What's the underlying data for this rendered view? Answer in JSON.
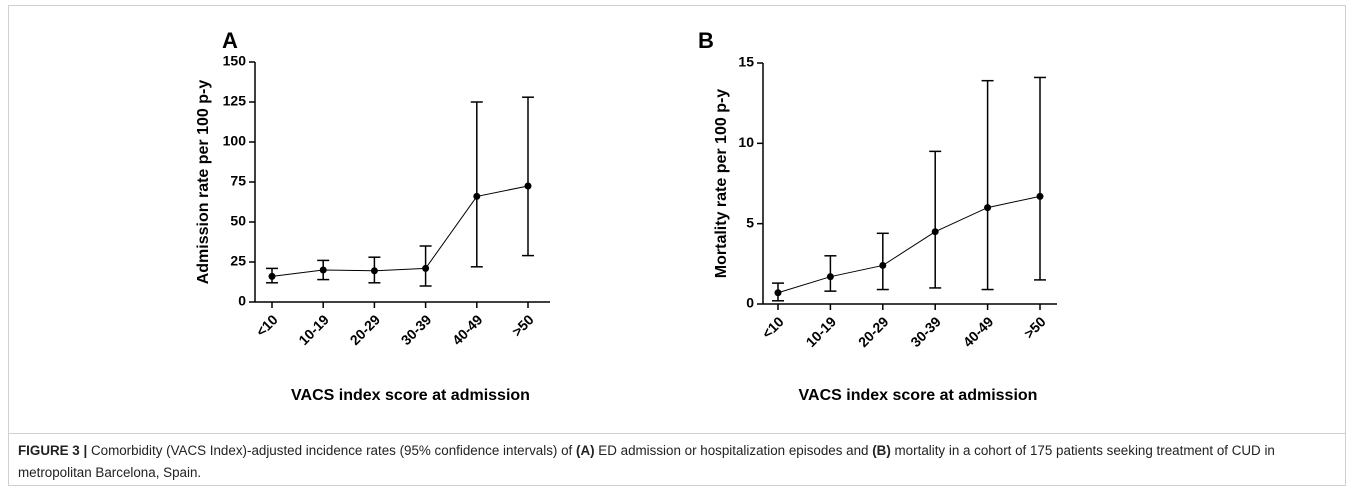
{
  "chart_data": [
    {
      "type": "line",
      "panel": "A",
      "ylabel": "Admission rate per 100 p-y",
      "xlabel": "VACS index score at admission",
      "categories": [
        "<10",
        "10-19",
        "20-29",
        "30-39",
        "40-49",
        ">50"
      ],
      "values": [
        16,
        20,
        19.5,
        21,
        66,
        72.5
      ],
      "error_low": [
        12,
        14,
        12,
        10,
        22,
        29
      ],
      "error_high": [
        21,
        26,
        28,
        35,
        125,
        128
      ],
      "color": "#000000",
      "ylim": [
        0,
        150
      ],
      "yticks": [
        0,
        25,
        50,
        75,
        100,
        125,
        150
      ]
    },
    {
      "type": "line",
      "panel": "B",
      "ylabel": "Mortality rate per 100 p-y",
      "xlabel": "VACS index score at admission",
      "categories": [
        "<10",
        "10-19",
        "20-29",
        "30-39",
        "40-49",
        ">50"
      ],
      "values": [
        0.7,
        1.7,
        2.4,
        4.5,
        6.0,
        6.7
      ],
      "error_low": [
        0.2,
        0.8,
        0.9,
        1.0,
        0.9,
        1.5
      ],
      "error_high": [
        1.3,
        3.0,
        4.4,
        9.5,
        13.9,
        14.1
      ],
      "color": "#000000",
      "ylim": [
        0,
        15
      ],
      "yticks": [
        0,
        5,
        10,
        15
      ]
    }
  ],
  "caption": {
    "label": "FIGURE 3 |",
    "parts": [
      " Comorbidity (VACS Index)-adjusted incidence rates (95% confidence intervals) of ",
      "(A)",
      " ED admission or hospitalization episodes and ",
      "(B)",
      " mortality in a cohort of 175 patients seeking treatment of CUD in metropolitan Barcelona, Spain."
    ]
  }
}
